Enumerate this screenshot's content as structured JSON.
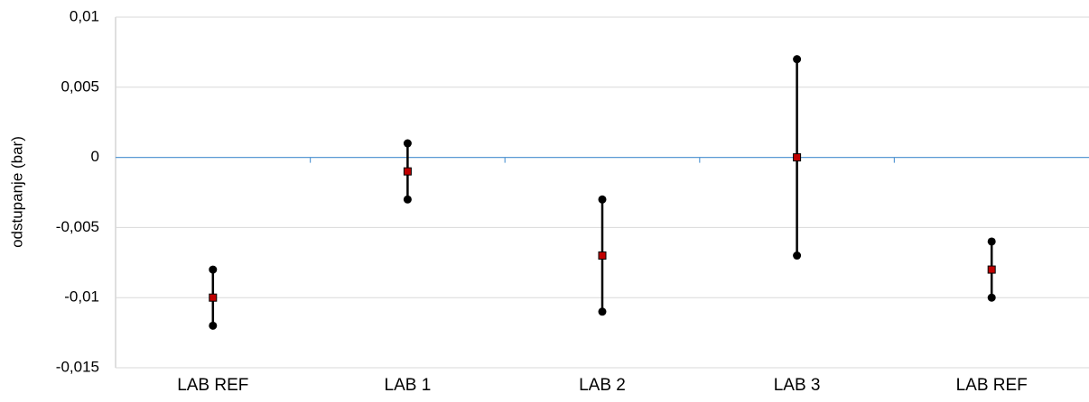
{
  "chart_data": {
    "type": "errorbar",
    "y_label": "odstupanje (bar)",
    "categories": [
      "LAB REF",
      "LAB 1",
      "LAB 2",
      "LAB 3",
      "LAB REF"
    ],
    "values": [
      -0.01,
      -0.001,
      -0.007,
      0,
      -0.008
    ],
    "errors": [
      0.002,
      0.002,
      0.004,
      0.007,
      0.002
    ],
    "color": "#c00000",
    "error_color": "#000000",
    "ylim": [
      -0.015,
      0.01
    ],
    "yticks": [
      {
        "value": -0.015,
        "label": "-0,015"
      },
      {
        "value": -0.01,
        "label": "-0,01"
      },
      {
        "value": -0.005,
        "label": "-0,005"
      },
      0,
      {
        "value": 0.005,
        "label": "0,005"
      },
      {
        "value": 0.01,
        "label": "0,01"
      }
    ],
    "grid": true
  }
}
